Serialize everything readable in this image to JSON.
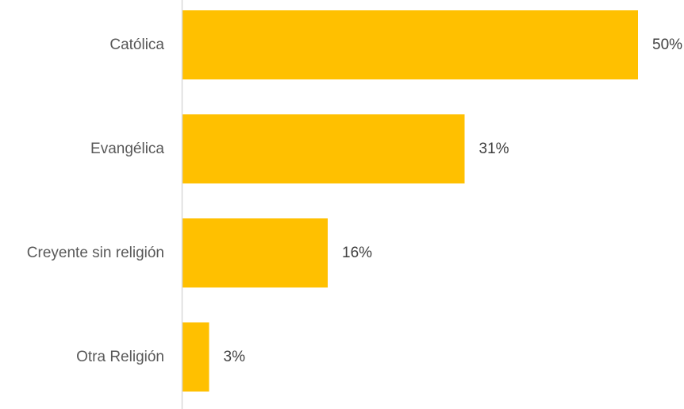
{
  "chart_data": {
    "type": "bar",
    "orientation": "horizontal",
    "categories": [
      "Católica",
      "Evangélica",
      "Creyente sin religión",
      "Otra Religión"
    ],
    "values": [
      50,
      31,
      16,
      3
    ],
    "value_labels": [
      "50%",
      "31%",
      "16%",
      "3%"
    ],
    "unit": "%",
    "xlim": [
      0,
      50
    ],
    "title": "",
    "xlabel": "",
    "ylabel": "",
    "grid": false,
    "legend": "none",
    "bar_color": "#FFC000",
    "axis_color": "#D9D9D9"
  }
}
